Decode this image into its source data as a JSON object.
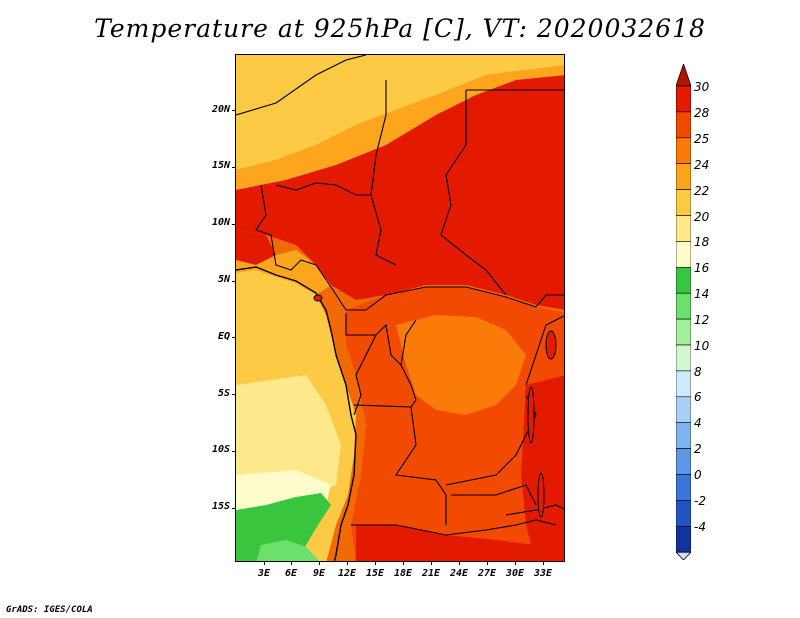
{
  "title": "Temperature at 925hPa [C], VT: 2020032618",
  "credit": "GrADS: IGES/COLA",
  "lat_labels": [
    "20N",
    "15N",
    "10N",
    "5N",
    "EQ",
    "5S",
    "10S",
    "15S"
  ],
  "lon_labels": [
    "3E",
    "6E",
    "9E",
    "12E",
    "15E",
    "18E",
    "21E",
    "24E",
    "27E",
    "30E",
    "33E"
  ],
  "colorbar": {
    "labels": [
      "30",
      "28",
      "25",
      "24",
      "22",
      "20",
      "18",
      "16",
      "14",
      "12",
      "10",
      "8",
      "6",
      "4",
      "2",
      "0",
      "-2",
      "-4"
    ],
    "colors": [
      "#b01500",
      "#e31a00",
      "#f24a00",
      "#fa7a0a",
      "#fda61d",
      "#fdca45",
      "#fee88c",
      "#fffccc",
      "#39c63e",
      "#6be06a",
      "#9ff09a",
      "#d3f8cf",
      "#cfe9ff",
      "#a9d1f8",
      "#7eb3ef",
      "#5a97e6",
      "#3a78d8",
      "#1f55c0",
      "#10349a",
      "#0a0a6e"
    ],
    "arrow_top_color": "#b01500",
    "arrow_bottom_color": "#d8d8f6"
  }
}
